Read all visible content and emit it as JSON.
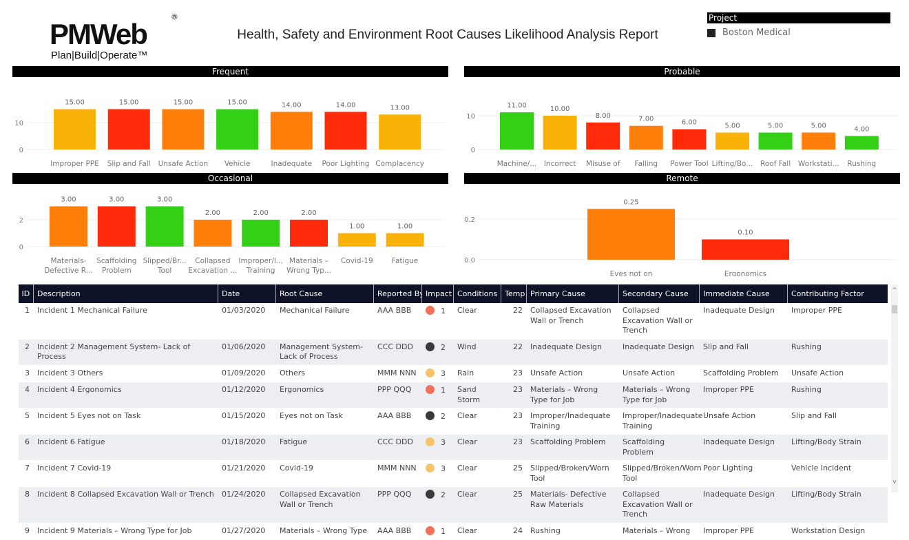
{
  "header": {
    "logo_text": "PMWeb",
    "logo_tagline": "Plan|Build|Operate™",
    "title": "Health, Safety and Environment Root Causes Likelihood Analysis Report"
  },
  "project": {
    "label": "Project",
    "value": "Boston Medical"
  },
  "colors": {
    "yellow": "#F8B208",
    "red": "#FF2A0A",
    "orange": "#FF7F0A",
    "green": "#33D016"
  },
  "chart_data": [
    {
      "type": "bar",
      "title": "Frequent",
      "yticks": [
        0,
        10
      ],
      "ylim": [
        0,
        18
      ],
      "categories": [
        "Improper PPE",
        "Slip and Fall",
        "Unsafe Action",
        "Vehicle Incident",
        "Inadequate Design",
        "Poor Lighting",
        "Complacency"
      ],
      "values": [
        15,
        15,
        15,
        15,
        14,
        14,
        13
      ],
      "value_labels": [
        "15.00",
        "15.00",
        "15.00",
        "15.00",
        "14.00",
        "14.00",
        "13.00"
      ],
      "colors": [
        "yellow",
        "red",
        "orange",
        "green",
        "orange",
        "red",
        "yellow"
      ]
    },
    {
      "type": "bar",
      "title": "Probable",
      "yticks": [
        0,
        10
      ],
      "ylim": [
        0,
        13
      ],
      "categories": [
        "Machine/... – Incorrec...",
        "Incorrect Mapping",
        "Misuse of Ladder",
        "Falling Hazard",
        "Power Tool Accident",
        "Lifting/Bo... Strain",
        "Roof Fall",
        "Workstati... Design",
        "Rushing"
      ],
      "values": [
        11,
        10,
        8,
        7,
        6,
        5,
        5,
        5,
        4
      ],
      "value_labels": [
        "11.00",
        "10.00",
        "8.00",
        "7.00",
        "6.00",
        "5.00",
        "5.00",
        "5.00",
        "4.00"
      ],
      "colors": [
        "green",
        "yellow",
        "red",
        "orange",
        "red",
        "yellow",
        "green",
        "orange",
        "green"
      ]
    },
    {
      "type": "bar",
      "title": "Occasional",
      "yticks": [
        0,
        2
      ],
      "ylim": [
        0,
        3.5
      ],
      "categories": [
        "Materials- Defective R...",
        "Scaffolding Problem",
        "Slipped/Br... Tool",
        "Collapsed Excavation ...",
        "Improper/I... Training",
        "Materials – Wrong Typ...",
        "Covid-19",
        "Fatigue"
      ],
      "values": [
        3,
        3,
        3,
        2,
        2,
        2,
        1,
        1
      ],
      "value_labels": [
        "3.00",
        "3.00",
        "3.00",
        "2.00",
        "2.00",
        "2.00",
        "1.00",
        "1.00"
      ],
      "colors": [
        "orange",
        "red",
        "green",
        "orange",
        "green",
        "red",
        "yellow",
        "yellow"
      ]
    },
    {
      "type": "bar",
      "title": "Remote",
      "yticks": [
        0.0,
        0.2
      ],
      "ylim": [
        0,
        0.28
      ],
      "categories": [
        "Eyes not on Task",
        "Ergonomics"
      ],
      "values": [
        0.25,
        0.1
      ],
      "value_labels": [
        "0.25",
        "0.10"
      ],
      "colors": [
        "orange",
        "red"
      ]
    }
  ],
  "table": {
    "columns": [
      "ID",
      "Description",
      "Date",
      "Root Cause",
      "Reported By",
      "Impact",
      "Conditions",
      "Temp",
      "Primary Cause",
      "Secondary Cause",
      "Immediate Cause",
      "Contributing Factor"
    ],
    "impact_colors": {
      "1": "#F0705A",
      "2": "#3A3A3A",
      "3": "#F7C46A"
    },
    "rows": [
      [
        "1",
        "Incident 1 Mechanical Failure",
        "01/03/2020",
        "Mechanical Failure",
        "AAA BBB",
        "1",
        "Clear",
        "22",
        "Collapsed Excavation Wall or Trench",
        "Collapsed Excavation Wall or Trench",
        "Inadequate Design",
        "Improper PPE"
      ],
      [
        "2",
        "Incident 2 Management System- Lack of Process",
        "01/06/2020",
        "Management System- Lack of Process",
        "CCC DDD",
        "2",
        "Wind",
        "22",
        "Inadequate Design",
        "Inadequate Design",
        "Slip and Fall",
        "Rushing"
      ],
      [
        "3",
        "Incident 3 Others",
        "01/09/2020",
        "Others",
        "MMM NNN",
        "3",
        "Rain",
        "23",
        "Unsafe Action",
        "Unsafe Action",
        "Scaffolding Problem",
        "Unsafe Action"
      ],
      [
        "4",
        "Incident 4 Ergonomics",
        "01/12/2020",
        "Ergonomics",
        "PPP QQQ",
        "1",
        "Sand Storm",
        "23",
        "Materials – Wrong Type for Job",
        "Materials – Wrong Type for Job",
        "Improper PPE",
        "Rushing"
      ],
      [
        "5",
        "Incident 5 Eyes not on Task",
        "01/15/2020",
        "Eyes not on Task",
        "AAA BBB",
        "2",
        "Clear",
        "23",
        "Improper/Inadequate Training",
        "Improper/Inadequate Training",
        "Unsafe Action",
        "Slip and Fall"
      ],
      [
        "6",
        "Incident 6 Fatigue",
        "01/18/2020",
        "Fatigue",
        "CCC DDD",
        "3",
        "Clear",
        "23",
        "Scaffolding Problem",
        "Scaffolding Problem",
        "Inadequate Design",
        "Lifting/Body Strain"
      ],
      [
        "7",
        "Incident 7 Covid-19",
        "01/21/2020",
        "Covid-19",
        "MMM NNN",
        "3",
        "Clear",
        "25",
        "Slipped/Broken/Worn Tool",
        "Slipped/Broken/Worn Tool",
        "Poor Lighting",
        "Vehicle Incident"
      ],
      [
        "8",
        "Incident 8 Collapsed Excavation Wall or Trench",
        "01/24/2020",
        "Collapsed Excavation Wall or Trench",
        "PPP QQQ",
        "2",
        "Clear",
        "25",
        "Materials- Defective Raw Materials",
        "Collapsed Excavation Wall or Trench",
        "Inadequate Design",
        "Lifting/Body Strain"
      ],
      [
        "9",
        "Incident 9 Materials – Wrong Type for Job",
        "01/27/2020",
        "Materials – Wrong Type",
        "AAA BBB",
        "1",
        "Clear",
        "24",
        "Rushing",
        "Materials – Wrong",
        "Improper PPE",
        "Workstation Design"
      ]
    ]
  }
}
